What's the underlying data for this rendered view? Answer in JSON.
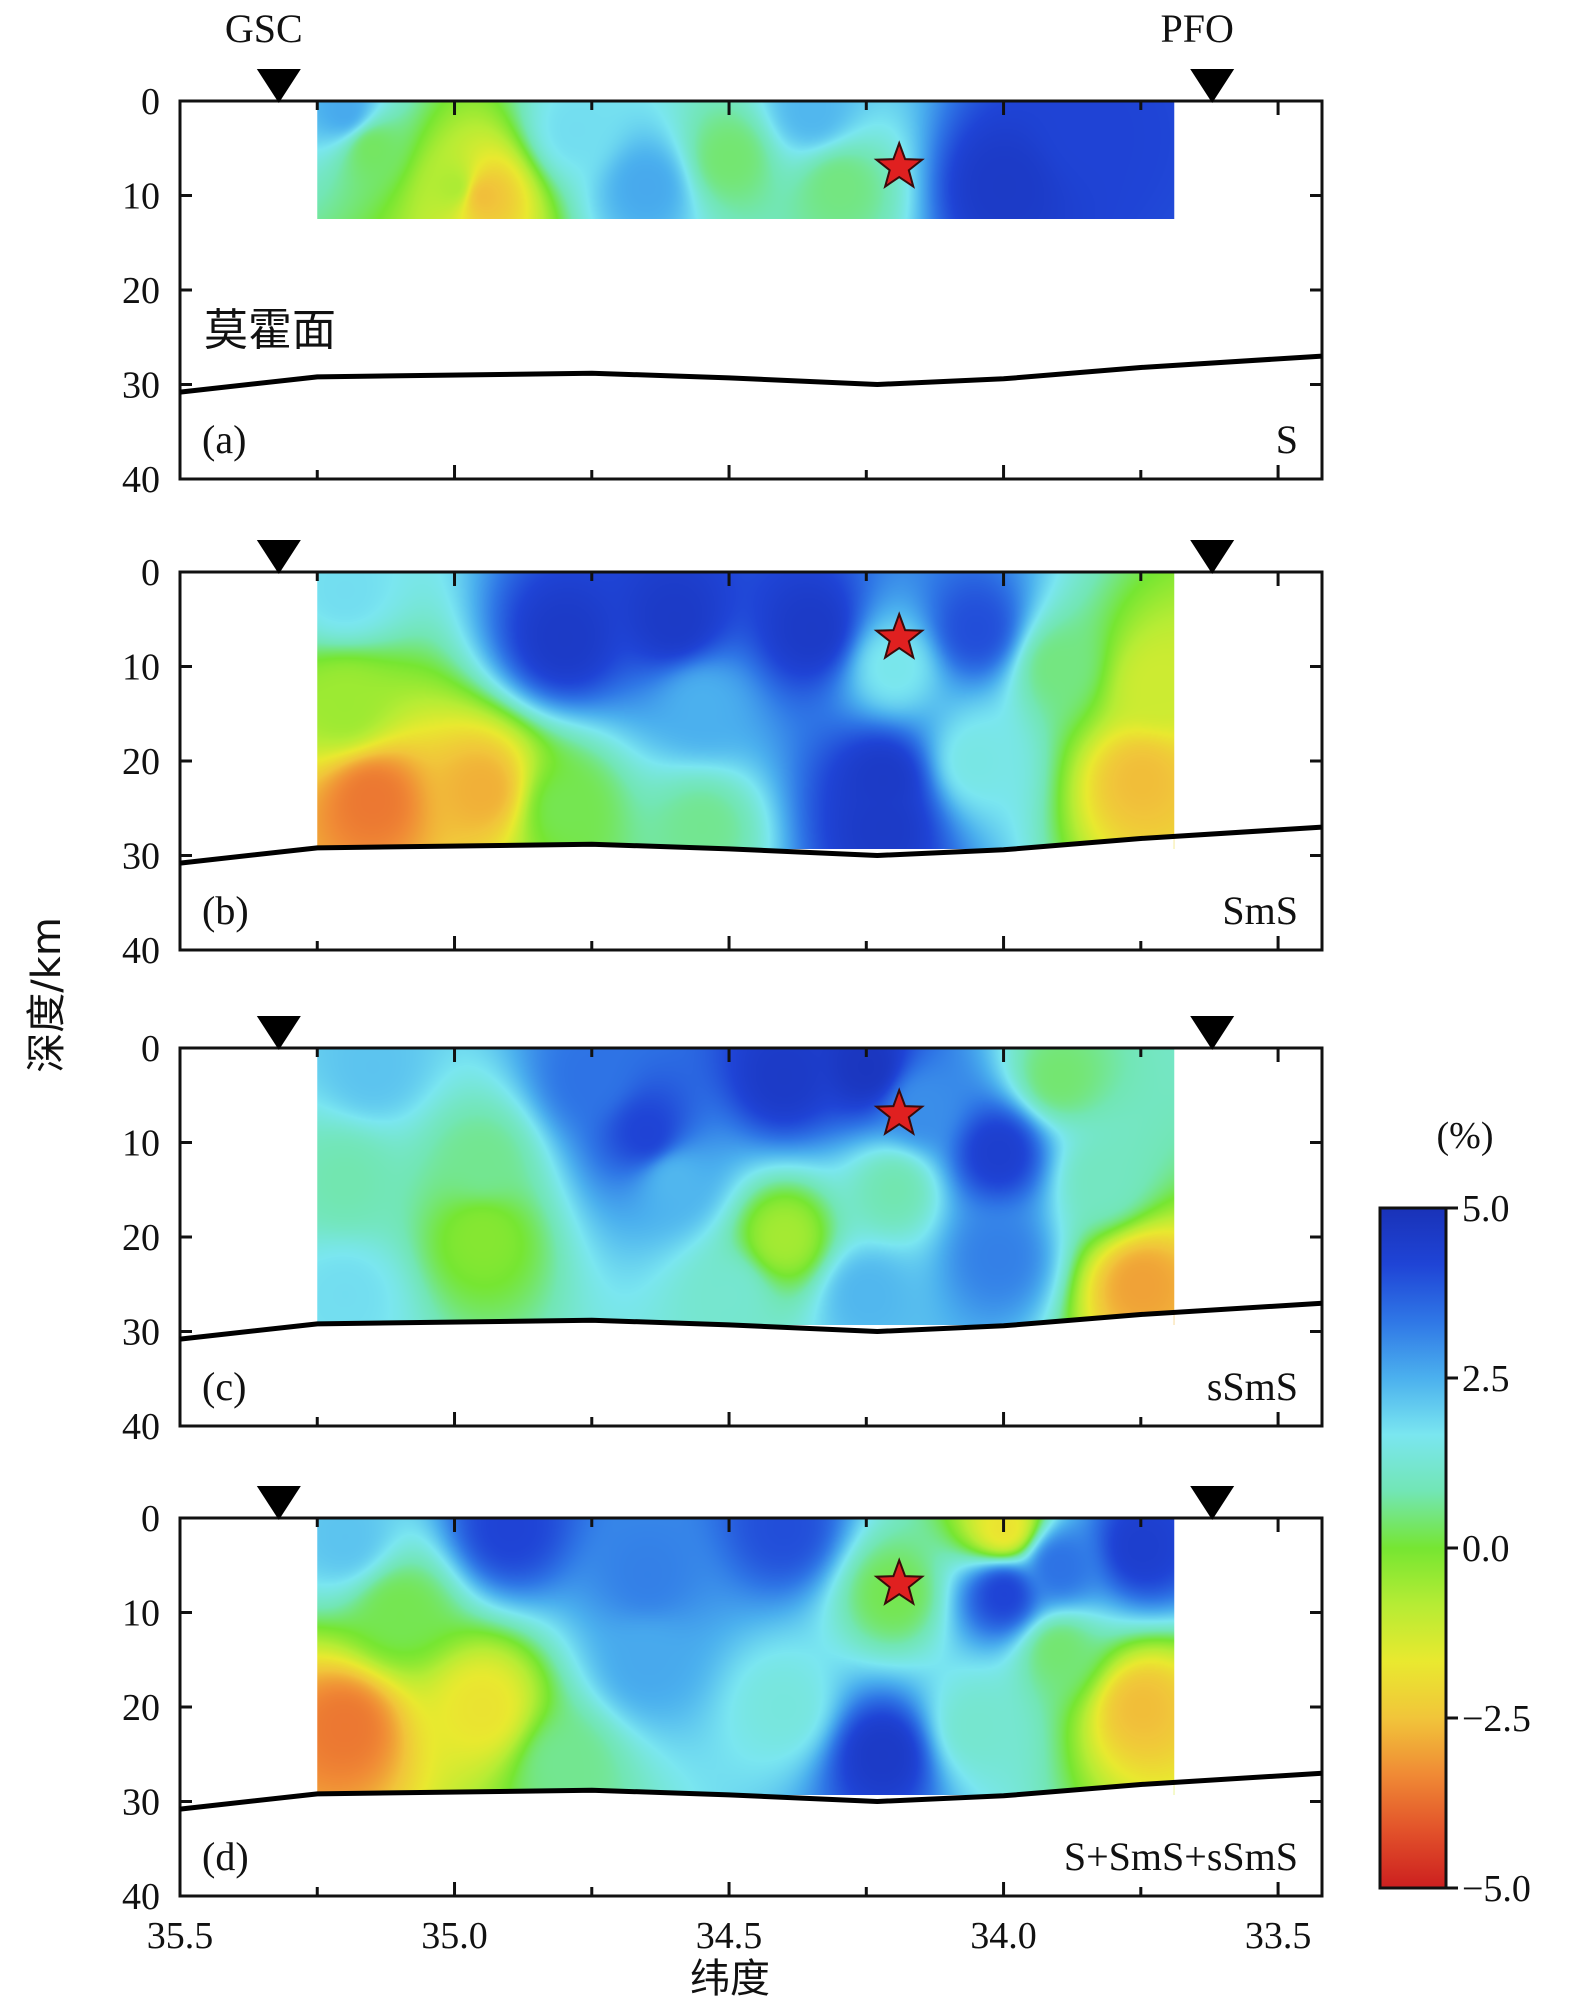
{
  "chart_data": {
    "type": "heatmap",
    "x_axis": {
      "label": "纬度",
      "range": [
        35.5,
        33.42
      ],
      "ticks": [
        35.5,
        35.0,
        34.5,
        34.0,
        33.5
      ],
      "tick_labels": [
        "35.5",
        "35.0",
        "34.5",
        "34.0",
        "33.5"
      ]
    },
    "y_axis": {
      "label": "深度/km",
      "range": [
        0,
        40
      ],
      "ticks": [
        0,
        10,
        20,
        30,
        40
      ],
      "tick_labels": [
        "0",
        "10",
        "20",
        "30",
        "40"
      ]
    },
    "stations": [
      {
        "name": "GSC",
        "latitude": 35.32
      },
      {
        "name": "PFO",
        "latitude": 33.62
      }
    ],
    "moho_label": "莫霍面",
    "moho": {
      "latitude": [
        35.5,
        35.25,
        34.75,
        34.5,
        34.23,
        34.0,
        33.75,
        33.42
      ],
      "depth": [
        30.8,
        29.2,
        28.8,
        29.3,
        30.0,
        29.4,
        28.2,
        27.0
      ]
    },
    "event": {
      "latitude": 34.19,
      "depth": 7
    },
    "model_extent": {
      "lat_max": 35.25,
      "lat_min": 33.69
    },
    "colorbar": {
      "title": "(%)",
      "range": [
        -5.0,
        5.0
      ],
      "tick_labels": [
        "5.0",
        "2.5",
        "0.0",
        "−2.5",
        "−5.0"
      ],
      "colors": [
        "#cc1f1f",
        "#e2512a",
        "#f08a35",
        "#f1c53a",
        "#e9e92f",
        "#b6ec34",
        "#76e632",
        "#72e6b5",
        "#7ae6f0",
        "#4bb0ee",
        "#2f77e6",
        "#1f44d6",
        "#1932b8"
      ]
    },
    "panels": [
      {
        "label": "(a)",
        "phase": "S",
        "depth_max": 12.5,
        "anomalies": [
          {
            "lat": 35.15,
            "depth": 5,
            "value": 0.3
          },
          {
            "lat": 35.0,
            "depth": 9,
            "value": -0.7
          },
          {
            "lat": 34.95,
            "depth": 10,
            "value": -2.6
          },
          {
            "lat": 34.78,
            "depth": 3,
            "value": 1.8
          },
          {
            "lat": 34.65,
            "depth": 9,
            "value": 2.6
          },
          {
            "lat": 34.5,
            "depth": 6,
            "value": 0.4
          },
          {
            "lat": 34.3,
            "depth": 9,
            "value": 0.5
          },
          {
            "lat": 34.0,
            "depth": 9,
            "value": 4.6
          },
          {
            "lat": 33.85,
            "depth": 3,
            "value": 4.2
          },
          {
            "lat": 35.2,
            "depth": 1,
            "value": 2.6
          },
          {
            "lat": 34.35,
            "depth": 1,
            "value": 2.4
          }
        ]
      },
      {
        "label": "(b)",
        "phase": "SmS",
        "depth_max": 29.3,
        "anomalies": [
          {
            "lat": 35.2,
            "depth": 2,
            "value": 1.8
          },
          {
            "lat": 34.8,
            "depth": 7,
            "value": 4.6
          },
          {
            "lat": 34.6,
            "depth": 5,
            "value": 4.6
          },
          {
            "lat": 34.35,
            "depth": 6,
            "value": 4.6
          },
          {
            "lat": 34.05,
            "depth": 6,
            "value": 4.0
          },
          {
            "lat": 34.2,
            "depth": 10,
            "value": 1.6
          },
          {
            "lat": 34.22,
            "depth": 22,
            "value": 4.6
          },
          {
            "lat": 34.22,
            "depth": 27,
            "value": 4.6
          },
          {
            "lat": 35.2,
            "depth": 14,
            "value": -0.5
          },
          {
            "lat": 35.15,
            "depth": 24,
            "value": -3.6
          },
          {
            "lat": 34.95,
            "depth": 23,
            "value": -2.8
          },
          {
            "lat": 34.8,
            "depth": 25,
            "value": 0.2
          },
          {
            "lat": 34.55,
            "depth": 27,
            "value": 0.6
          },
          {
            "lat": 34.55,
            "depth": 14,
            "value": 2.5
          },
          {
            "lat": 34.05,
            "depth": 20,
            "value": 1.5
          },
          {
            "lat": 33.9,
            "depth": 10,
            "value": 0.5
          },
          {
            "lat": 33.75,
            "depth": 22,
            "value": -2.6
          },
          {
            "lat": 33.72,
            "depth": 12,
            "value": -1.2
          }
        ]
      },
      {
        "label": "(c)",
        "phase": "sSmS",
        "depth_max": 29.3,
        "anomalies": [
          {
            "lat": 35.15,
            "depth": 2,
            "value": 2.2
          },
          {
            "lat": 34.75,
            "depth": 3,
            "value": 3.4
          },
          {
            "lat": 34.4,
            "depth": 3,
            "value": 4.6
          },
          {
            "lat": 34.25,
            "depth": 2,
            "value": 4.8
          },
          {
            "lat": 34.65,
            "depth": 9,
            "value": 4.2
          },
          {
            "lat": 34.6,
            "depth": 14,
            "value": 2.4
          },
          {
            "lat": 34.95,
            "depth": 12,
            "value": 0.6
          },
          {
            "lat": 35.2,
            "depth": 14,
            "value": 0.8
          },
          {
            "lat": 34.95,
            "depth": 20,
            "value": -0.2
          },
          {
            "lat": 35.2,
            "depth": 26,
            "value": 1.8
          },
          {
            "lat": 34.5,
            "depth": 26,
            "value": 1.2
          },
          {
            "lat": 34.4,
            "depth": 20,
            "value": -0.6
          },
          {
            "lat": 34.2,
            "depth": 15,
            "value": 0.8
          },
          {
            "lat": 34.25,
            "depth": 26,
            "value": 2.4
          },
          {
            "lat": 34.01,
            "depth": 11,
            "value": 4.4
          },
          {
            "lat": 34.01,
            "depth": 22,
            "value": 3.2
          },
          {
            "lat": 33.9,
            "depth": 3,
            "value": 0.4
          },
          {
            "lat": 33.82,
            "depth": 14,
            "value": 1.0
          },
          {
            "lat": 33.75,
            "depth": 25,
            "value": -3.0
          },
          {
            "lat": 34.15,
            "depth": 6,
            "value": 3.0
          }
        ]
      },
      {
        "label": "(d)",
        "phase": "S+SmS+sSmS",
        "depth_max": 29.3,
        "anomalies": [
          {
            "lat": 34.9,
            "depth": 1,
            "value": 4.2
          },
          {
            "lat": 34.4,
            "depth": 1,
            "value": 4.0
          },
          {
            "lat": 35.2,
            "depth": 2,
            "value": 2.2
          },
          {
            "lat": 34.65,
            "depth": 6,
            "value": 3.2
          },
          {
            "lat": 34.65,
            "depth": 15,
            "value": 2.6
          },
          {
            "lat": 35.1,
            "depth": 10,
            "value": 0.2
          },
          {
            "lat": 35.2,
            "depth": 22,
            "value": -3.6
          },
          {
            "lat": 34.95,
            "depth": 20,
            "value": -1.8
          },
          {
            "lat": 34.8,
            "depth": 26,
            "value": 0.6
          },
          {
            "lat": 34.4,
            "depth": 20,
            "value": 1.4
          },
          {
            "lat": 34.22,
            "depth": 25,
            "value": 4.6
          },
          {
            "lat": 34.2,
            "depth": 8,
            "value": 0.2
          },
          {
            "lat": 34.0,
            "depth": 8,
            "value": 4.2
          },
          {
            "lat": 33.9,
            "depth": 5,
            "value": 3.4
          },
          {
            "lat": 33.75,
            "depth": 3,
            "value": 4.4
          },
          {
            "lat": 34.0,
            "depth": 1,
            "value": -1.8
          },
          {
            "lat": 34.05,
            "depth": 22,
            "value": 1.2
          },
          {
            "lat": 33.75,
            "depth": 20,
            "value": -2.6
          },
          {
            "lat": 33.9,
            "depth": 14,
            "value": 0.4
          }
        ]
      }
    ]
  }
}
